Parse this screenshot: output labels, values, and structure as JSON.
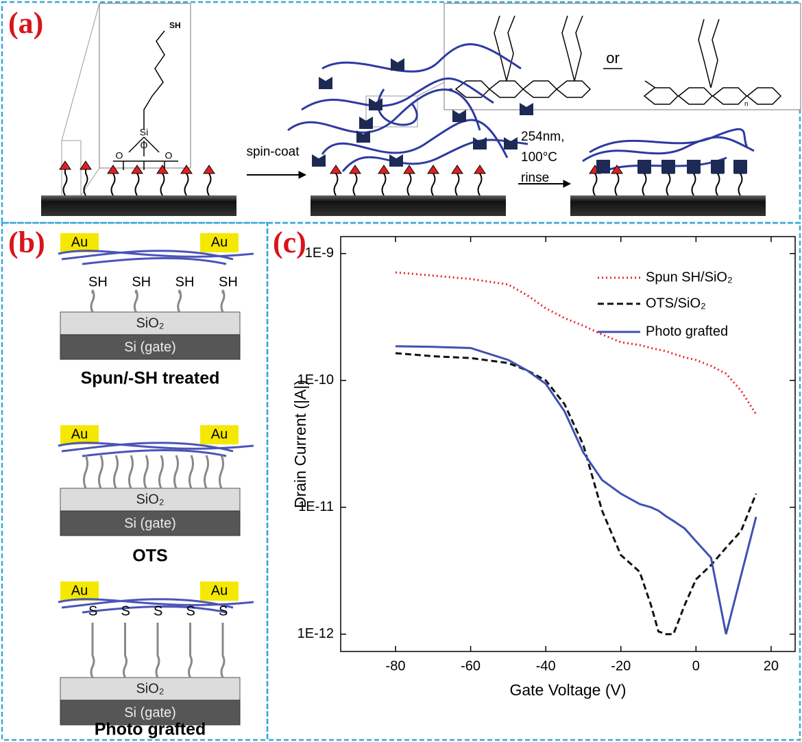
{
  "panel_a": {
    "label": "(a)",
    "thiol_label": "SH",
    "silicon": "Si",
    "oxygens": [
      "O",
      "O",
      "O"
    ],
    "step1": "spin-coat",
    "step2": [
      "254nm,",
      "100°C",
      "rinse"
    ],
    "or": "or",
    "repeat": "n"
  },
  "panel_b": {
    "label": "(b)",
    "devices": [
      {
        "electrodes": [
          "Au",
          "Au"
        ],
        "anchors": [
          "SH",
          "SH",
          "SH",
          "SH"
        ],
        "dielectric": "SiO₂",
        "gate": "Si (gate)",
        "caption": "Spun/-SH treated"
      },
      {
        "electrodes": [
          "Au",
          "Au"
        ],
        "dielectric": "SiO₂",
        "gate": "Si (gate)",
        "caption": "OTS"
      },
      {
        "electrodes": [
          "Au",
          "Au"
        ],
        "anchors": [
          "S",
          "S",
          "S",
          "S",
          "S"
        ],
        "dielectric": "SiO₂",
        "gate": "Si (gate)",
        "caption": "Photo grafted"
      }
    ]
  },
  "panel_c": {
    "label": "(c)"
  },
  "chart_data": {
    "type": "line",
    "xlabel": "Gate Voltage (V)",
    "ylabel": "Drain Current (|A|)",
    "x": [
      -80,
      -70,
      -60,
      -50,
      -45,
      -40,
      -35,
      -30,
      -25,
      -20,
      -15,
      -12,
      -10,
      -8,
      -6,
      -3,
      0,
      4,
      8,
      12,
      16
    ],
    "series": [
      {
        "name": "Spun SH/SiO₂",
        "color": "#e8262c",
        "dash": "dotted",
        "values": [
          7.1e-10,
          6.7e-10,
          6.3e-10,
          5.7e-10,
          4.7e-10,
          3.7e-10,
          3.1e-10,
          2.7e-10,
          2.3e-10,
          2e-10,
          1.9e-10,
          1.8e-10,
          1.75e-10,
          1.7e-10,
          1.62e-10,
          1.52e-10,
          1.45e-10,
          1.3e-10,
          1.13e-10,
          8.3e-11,
          5.4e-11
        ]
      },
      {
        "name": "OTS/SiO₂",
        "color": "#111111",
        "dash": "dashed",
        "values": [
          1.64e-10,
          1.55e-10,
          1.5e-10,
          1.37e-10,
          1.2e-10,
          1e-10,
          6.5e-11,
          3.1e-11,
          9.4e-12,
          4.2e-12,
          3.1e-12,
          1.7e-12,
          1.05e-12,
          1e-12,
          1e-12,
          1.7e-12,
          2.7e-12,
          3.5e-12,
          4.8e-12,
          6.5e-12,
          1.28e-11
        ]
      },
      {
        "name": "Photo grafted",
        "color": "#3f51b0",
        "dash": "solid",
        "values": [
          1.86e-10,
          1.84e-10,
          1.8e-10,
          1.45e-10,
          1.2e-10,
          9.4e-11,
          5.7e-11,
          2.7e-11,
          1.64e-11,
          1.28e-11,
          1.06e-11,
          1e-11,
          9.4e-12,
          8.5e-12,
          7.8e-12,
          6.8e-12,
          5.4e-12,
          4e-12,
          1e-12,
          2.9e-12,
          8.4e-12
        ]
      }
    ],
    "xlim": [
      -94.6,
      26.4
    ],
    "xticks": [
      -80,
      -60,
      -40,
      -20,
      0,
      20
    ],
    "ylim": [
      7.3e-13,
      1.36e-09
    ],
    "log_y": true,
    "yticks": [
      {
        "value": 1e-12,
        "label": "1E-12"
      },
      {
        "value": 1e-11,
        "label": "1E-11"
      },
      {
        "value": 1e-10,
        "label": "1E-10"
      },
      {
        "value": 1e-09,
        "label": "1E-9"
      }
    ],
    "legend": "upper right",
    "grid": false
  }
}
